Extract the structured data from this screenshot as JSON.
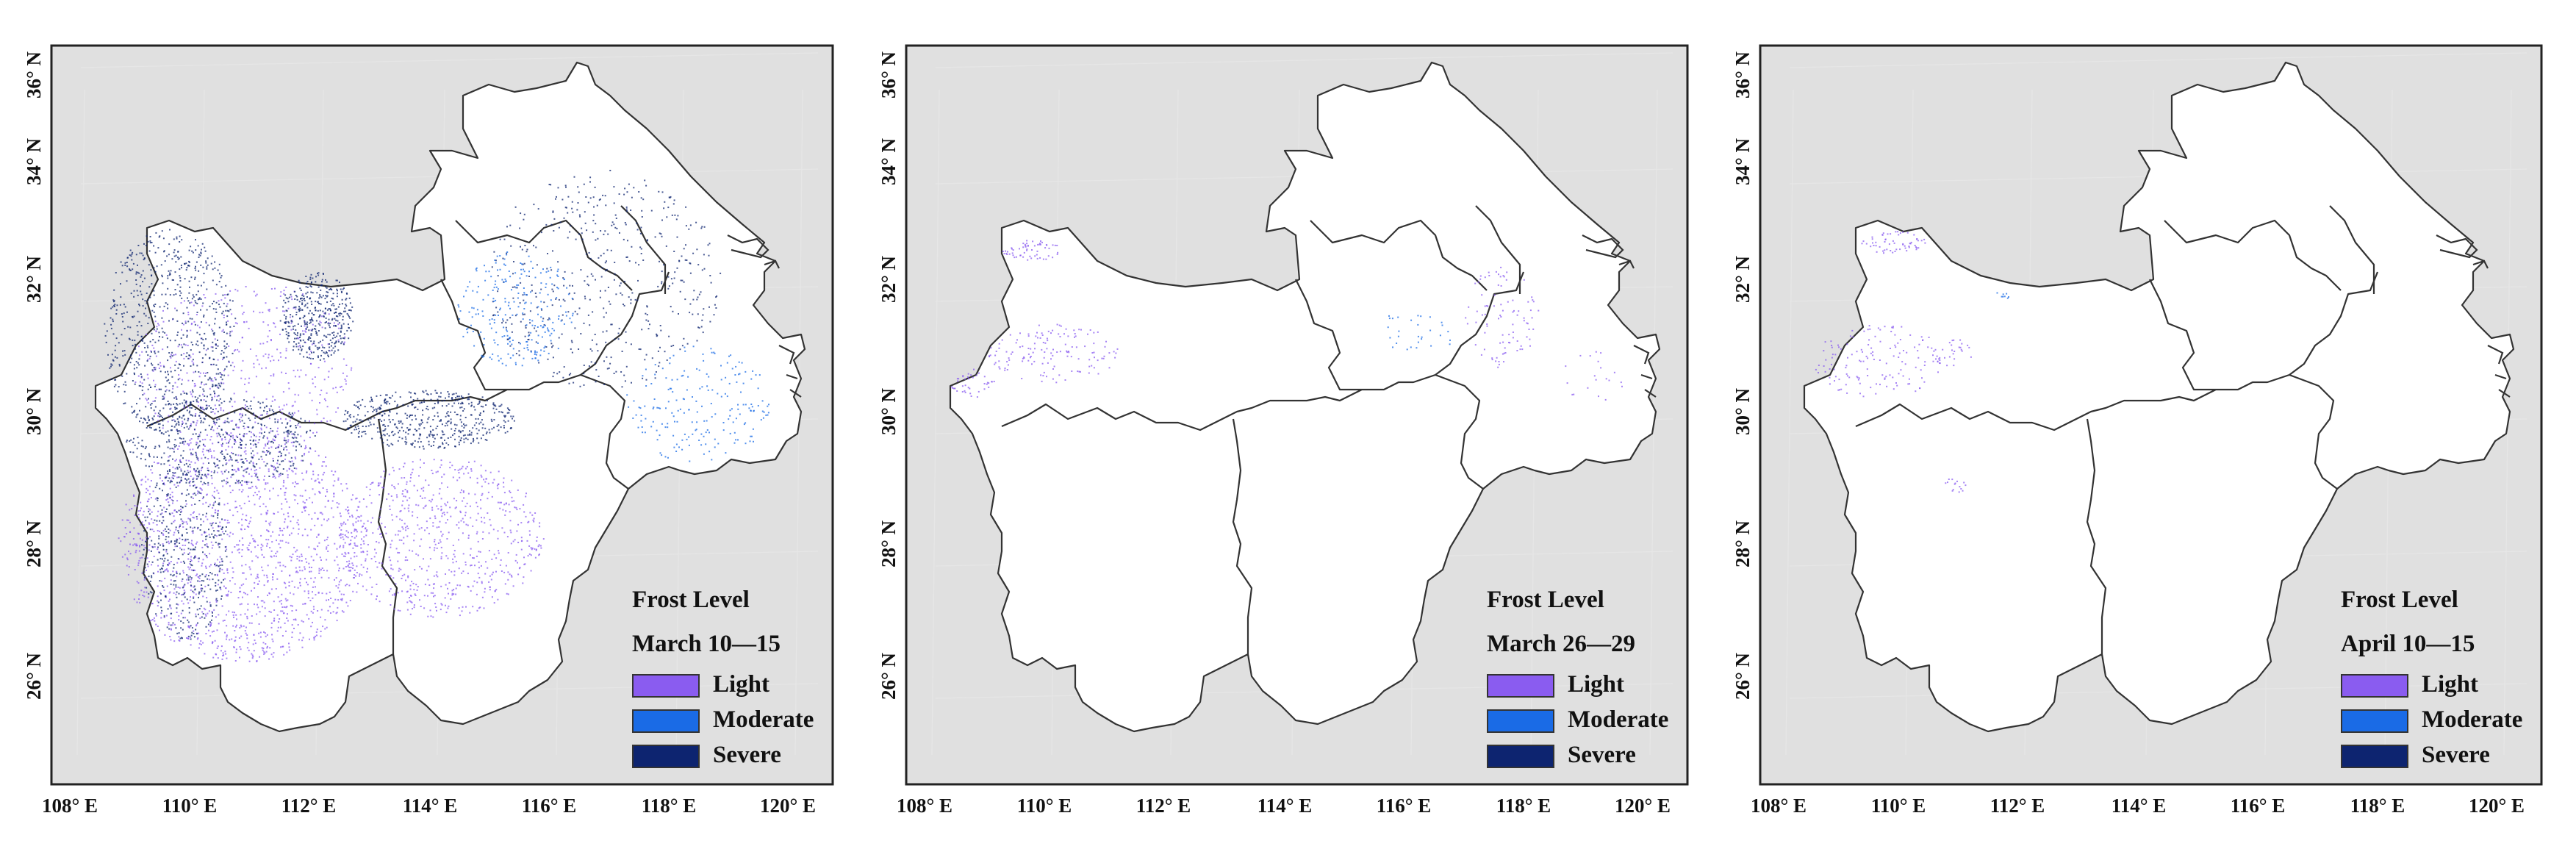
{
  "panels": [
    {
      "id": "a",
      "legend_title": "Frost Level",
      "period": "March 10—15",
      "frost_extent": {
        "light": "widespread, concentrated in southwest and central-south",
        "moderate": "scattered",
        "severe": "widespread along western and central northern mountains"
      }
    },
    {
      "id": "b",
      "legend_title": "Frost Level",
      "period": "March 26—29",
      "frost_extent": {
        "light": "sparse, northwest and east-central",
        "moderate": "rare",
        "severe": "rare"
      }
    },
    {
      "id": "c",
      "legend_title": "Frost Level",
      "period": "April 10—15",
      "frost_extent": {
        "light": "sparse, northwest",
        "moderate": "rare",
        "severe": "none visible"
      }
    }
  ],
  "axes": {
    "x_ticks": [
      "108° E",
      "110° E",
      "112° E",
      "114° E",
      "116° E",
      "118° E",
      "120° E"
    ],
    "y_ticks": [
      "26° N",
      "28° N",
      "30° N",
      "32° N",
      "34° N",
      "36° N"
    ]
  },
  "legend": {
    "levels": [
      {
        "label": "Light",
        "color": "#8a5cf0"
      },
      {
        "label": "Moderate",
        "color": "#1a6be6"
      },
      {
        "label": "Severe",
        "color": "#0d2470"
      }
    ]
  },
  "colors": {
    "background": "#e0e0e0",
    "land": "#ffffff",
    "border": "#333333"
  }
}
